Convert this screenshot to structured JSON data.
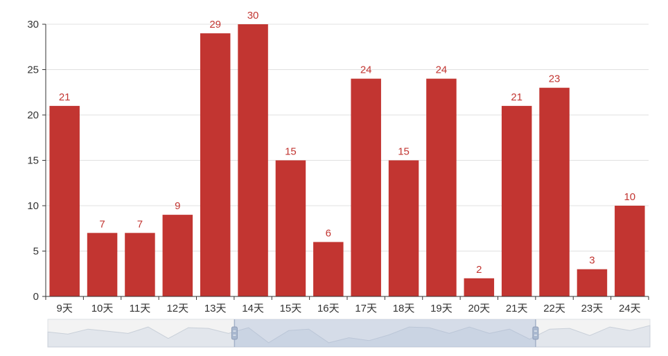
{
  "chart_data": {
    "type": "bar",
    "categories": [
      "9天",
      "10天",
      "11天",
      "12天",
      "13天",
      "14天",
      "15天",
      "16天",
      "17天",
      "18天",
      "19天",
      "20天",
      "21天",
      "22天",
      "23天",
      "24天"
    ],
    "values": [
      21,
      7,
      7,
      9,
      29,
      30,
      15,
      6,
      24,
      15,
      24,
      2,
      21,
      23,
      3,
      10
    ],
    "title": "",
    "xlabel": "",
    "ylabel": "",
    "ylim": [
      0,
      30
    ],
    "yticks": [
      0,
      5,
      10,
      15,
      20,
      25,
      30
    ],
    "grid": true,
    "data_labels": true,
    "bar_color": "#c23531",
    "label_color": "#c23531",
    "data_zoom": {
      "visible": true,
      "selected_range_percent": [
        31,
        81
      ],
      "preview_values": [
        18,
        15,
        22,
        19,
        16,
        25,
        9,
        24,
        23,
        16,
        24,
        3,
        20,
        22,
        3,
        10,
        6,
        14,
        25,
        24,
        16,
        25,
        16,
        22,
        8,
        22,
        23,
        13,
        25,
        20,
        27
      ]
    }
  }
}
